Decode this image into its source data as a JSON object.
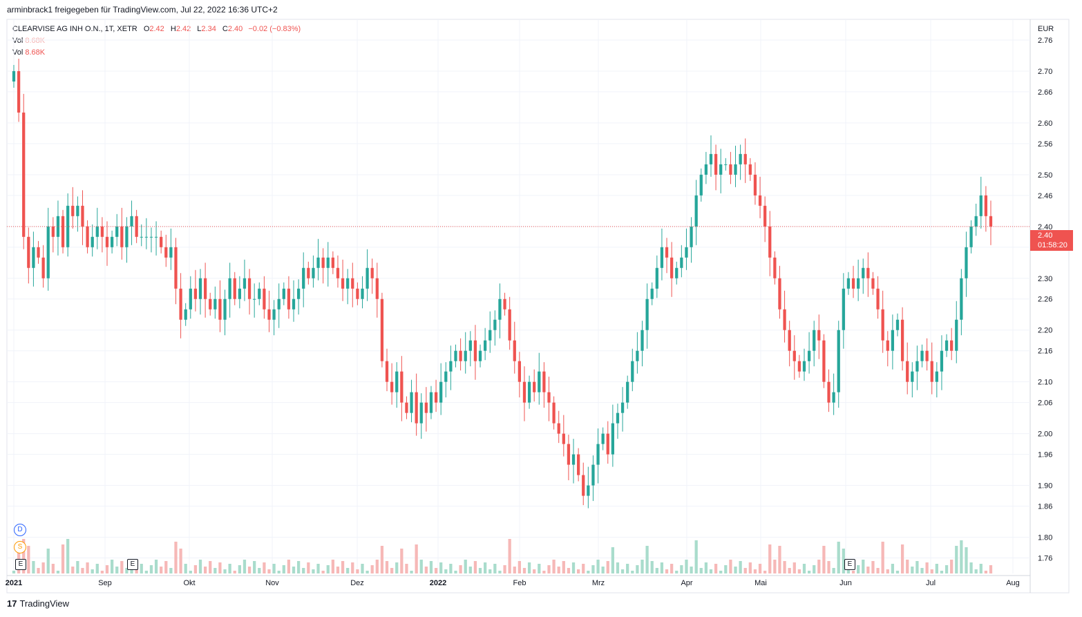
{
  "header": {
    "shared_by": "arminbrack1 freigegeben für TradingView.com, Jul 22, 2022 16:36 UTC+2"
  },
  "legend": {
    "symbol": "CLEARVISE AG INH O.N., 1T, XETR",
    "o_label": "O",
    "o_value": "2.42",
    "h_label": "H",
    "h_value": "2.42",
    "l_label": "L",
    "l_value": "2.34",
    "c_label": "C",
    "c_value": "2.40",
    "change": "−0.02 (−0.83%)",
    "vol1_label": "Vol",
    "vol1_value": "8.68K",
    "vol2_label": "Vol",
    "vol2_value": "8.68K"
  },
  "price_box": {
    "price": "2.40",
    "countdown": "01:58:20"
  },
  "markers": {
    "dividend": "D",
    "split": "S",
    "earnings": "E"
  },
  "footer": {
    "brand": "TradingView",
    "logo": "17"
  },
  "colors": {
    "up": "#26a69a",
    "down": "#ef5350",
    "up_vol": "#a9dccc",
    "down_vol": "#f6b8b7",
    "grid": "#f0f3fa"
  },
  "chart_data": {
    "type": "candlestick",
    "currency": "EUR",
    "ylim": [
      1.73,
      2.8
    ],
    "y_ticks": [
      1.76,
      1.8,
      1.86,
      1.9,
      1.96,
      2.0,
      2.06,
      2.1,
      2.16,
      2.2,
      2.26,
      2.3,
      2.36,
      2.4,
      2.46,
      2.5,
      2.56,
      2.6,
      2.66,
      2.7,
      2.76
    ],
    "y_tick_labels": [
      "1.76",
      "1.80",
      "1.86",
      "1.90",
      "1.96",
      "2.00",
      "2.06",
      "2.10",
      "2.16",
      "2.20",
      "2.26",
      "2.30",
      "2.36",
      "2.40",
      "2.46",
      "2.50",
      "2.56",
      "2.60",
      "2.66",
      "2.70",
      "2.76"
    ],
    "x_labels": [
      "2021",
      "Sep",
      "Okt",
      "Nov",
      "Dez",
      "2022",
      "Feb",
      "Mrz",
      "Apr",
      "Mai",
      "Jun",
      "Jul",
      "Aug"
    ],
    "last_price": 2.4,
    "grid": true,
    "closes": [
      2.7,
      2.62,
      2.38,
      2.32,
      2.36,
      2.34,
      2.3,
      2.4,
      2.38,
      2.42,
      2.36,
      2.44,
      2.42,
      2.44,
      2.4,
      2.36,
      2.38,
      2.4,
      2.38,
      2.36,
      2.38,
      2.4,
      2.36,
      2.4,
      2.42,
      2.38,
      2.38,
      2.38,
      2.38,
      2.38,
      2.36,
      2.34,
      2.36,
      2.28,
      2.22,
      2.24,
      2.28,
      2.26,
      2.3,
      2.26,
      2.24,
      2.26,
      2.22,
      2.26,
      2.3,
      2.26,
      2.28,
      2.3,
      2.26,
      2.26,
      2.28,
      2.24,
      2.22,
      2.24,
      2.26,
      2.28,
      2.24,
      2.26,
      2.28,
      2.32,
      2.3,
      2.32,
      2.34,
      2.32,
      2.34,
      2.32,
      2.3,
      2.28,
      2.3,
      2.28,
      2.26,
      2.28,
      2.32,
      2.3,
      2.26,
      2.14,
      2.1,
      2.08,
      2.12,
      2.06,
      2.04,
      2.08,
      2.02,
      2.06,
      2.04,
      2.08,
      2.06,
      2.1,
      2.12,
      2.14,
      2.16,
      2.14,
      2.16,
      2.18,
      2.14,
      2.16,
      2.18,
      2.2,
      2.22,
      2.26,
      2.24,
      2.18,
      2.14,
      2.1,
      2.06,
      2.1,
      2.08,
      2.12,
      2.08,
      2.06,
      2.02,
      2.0,
      1.98,
      1.94,
      1.96,
      1.92,
      1.88,
      1.9,
      1.94,
      1.98,
      2.0,
      1.96,
      2.02,
      2.04,
      2.06,
      2.1,
      2.14,
      2.16,
      2.2,
      2.26,
      2.28,
      2.32,
      2.36,
      2.34,
      2.3,
      2.32,
      2.34,
      2.36,
      2.4,
      2.46,
      2.5,
      2.52,
      2.54,
      2.5,
      2.52,
      2.52,
      2.5,
      2.52,
      2.54,
      2.52,
      2.5,
      2.46,
      2.44,
      2.4,
      2.34,
      2.3,
      2.24,
      2.2,
      2.16,
      2.14,
      2.12,
      2.14,
      2.16,
      2.2,
      2.18,
      2.1,
      2.06,
      2.08,
      2.2,
      2.28,
      2.3,
      2.28,
      2.3,
      2.32,
      2.3,
      2.28,
      2.24,
      2.18,
      2.16,
      2.2,
      2.22,
      2.14,
      2.1,
      2.12,
      2.14,
      2.16,
      2.14,
      2.1,
      2.12,
      2.16,
      2.18,
      2.16,
      2.22,
      2.3,
      2.36,
      2.4,
      2.42,
      2.46,
      2.42,
      2.4
    ]
  }
}
